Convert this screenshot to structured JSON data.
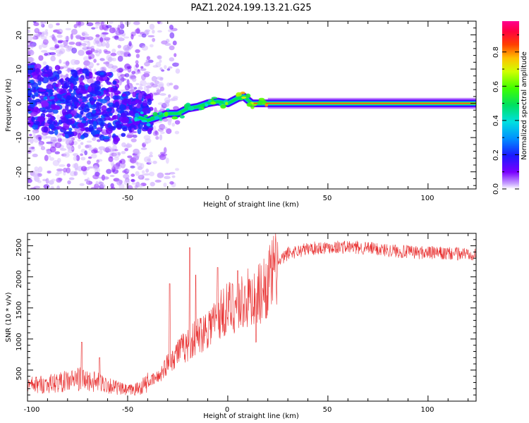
{
  "title": "PAZ1.2024.199.13.21.G25",
  "colors": {
    "snr_line": "#e83030",
    "background": "#ffffff",
    "axis": "#000000"
  },
  "chart_data": [
    {
      "type": "heatmap",
      "xlabel": "Height of straight line (km)",
      "ylabel": "Frequency (Hz)",
      "xlim": [
        -100,
        124
      ],
      "ylim": [
        -25,
        24
      ],
      "xticks": [
        "-100",
        "-50",
        "0",
        "50",
        "100"
      ],
      "yticks": [
        "-20",
        "-10",
        "0",
        "10",
        "20"
      ],
      "colorbar": {
        "label": "Normalized spectral amplitude",
        "range": [
          0,
          0.98
        ],
        "ticks": [
          "0.0",
          "0.2",
          "0.4",
          "0.6",
          "0.8"
        ],
        "colormap": "rainbow (violet -> blue -> cyan -> green -> yellow -> red -> magenta)"
      },
      "ridge": [
        {
          "x": -98,
          "f": 3,
          "a": 0.22
        },
        {
          "x": -90,
          "f": 2.5,
          "a": 0.3
        },
        {
          "x": -85,
          "f": 1,
          "a": 0.25
        },
        {
          "x": -78,
          "f": 0,
          "a": 0.25
        },
        {
          "x": -72,
          "f": -2.5,
          "a": 0.32
        },
        {
          "x": -66,
          "f": -1.5,
          "a": 0.25
        },
        {
          "x": -60,
          "f": -3,
          "a": 0.3
        },
        {
          "x": -55,
          "f": -6,
          "a": 0.22
        },
        {
          "x": -50,
          "f": -8,
          "a": 0.2
        },
        {
          "x": -45,
          "f": -4,
          "a": 0.45
        },
        {
          "x": -40,
          "f": -5,
          "a": 0.6
        },
        {
          "x": -35,
          "f": -4,
          "a": 0.55
        },
        {
          "x": -30,
          "f": -3,
          "a": 0.62
        },
        {
          "x": -25,
          "f": -3,
          "a": 0.65
        },
        {
          "x": -20,
          "f": -1.5,
          "a": 0.6
        },
        {
          "x": -15,
          "f": -1,
          "a": 0.62
        },
        {
          "x": -10,
          "f": 0,
          "a": 0.62
        },
        {
          "x": -5,
          "f": 0.5,
          "a": 0.65
        },
        {
          "x": 0,
          "f": 0,
          "a": 0.7
        },
        {
          "x": 5,
          "f": 1.5,
          "a": 0.75
        },
        {
          "x": 8,
          "f": 2,
          "a": 0.8
        },
        {
          "x": 12,
          "f": 0,
          "a": 0.75
        },
        {
          "x": 18,
          "f": 0,
          "a": 0.85
        },
        {
          "x": 30,
          "f": 0,
          "a": 0.88
        },
        {
          "x": 60,
          "f": 0,
          "a": 0.9
        },
        {
          "x": 100,
          "f": 0,
          "a": 0.9
        },
        {
          "x": 124,
          "f": 0,
          "a": 0.9
        }
      ],
      "speckle_region": {
        "x": [
          -100,
          -25
        ],
        "f": [
          -25,
          24
        ]
      }
    },
    {
      "type": "line",
      "xlabel": "Height of straight line (km)",
      "ylabel": "SNR (10 * v/v)",
      "xlim": [
        -100,
        124
      ],
      "ylim": [
        0,
        2700
      ],
      "xticks": [
        "-100",
        "-50",
        "0",
        "50",
        "100"
      ],
      "yticks": [
        "500",
        "1000",
        "1500",
        "2000",
        "2500"
      ],
      "series": [
        {
          "trend": [
            {
              "x": -100,
              "y": 250
            },
            {
              "x": -90,
              "y": 280
            },
            {
              "x": -80,
              "y": 320
            },
            {
              "x": -75,
              "y": 360
            },
            {
              "x": -70,
              "y": 330
            },
            {
              "x": -65,
              "y": 300
            },
            {
              "x": -60,
              "y": 270
            },
            {
              "x": -55,
              "y": 210
            },
            {
              "x": -50,
              "y": 170
            },
            {
              "x": -45,
              "y": 200
            },
            {
              "x": -40,
              "y": 300
            },
            {
              "x": -35,
              "y": 380
            },
            {
              "x": -30,
              "y": 600
            },
            {
              "x": -25,
              "y": 800
            },
            {
              "x": -20,
              "y": 900
            },
            {
              "x": -15,
              "y": 1050
            },
            {
              "x": -10,
              "y": 1200
            },
            {
              "x": -5,
              "y": 1350
            },
            {
              "x": 0,
              "y": 1500
            },
            {
              "x": 5,
              "y": 1550
            },
            {
              "x": 10,
              "y": 1650
            },
            {
              "x": 15,
              "y": 1700
            },
            {
              "x": 20,
              "y": 1900
            },
            {
              "x": 25,
              "y": 2200
            },
            {
              "x": 30,
              "y": 2380
            },
            {
              "x": 40,
              "y": 2450
            },
            {
              "x": 50,
              "y": 2480
            },
            {
              "x": 60,
              "y": 2480
            },
            {
              "x": 70,
              "y": 2460
            },
            {
              "x": 80,
              "y": 2430
            },
            {
              "x": 90,
              "y": 2400
            },
            {
              "x": 100,
              "y": 2390
            },
            {
              "x": 110,
              "y": 2370
            },
            {
              "x": 124,
              "y": 2380
            }
          ],
          "spikes": [
            {
              "x": -73,
              "y": 950
            },
            {
              "x": -64,
              "y": 700
            },
            {
              "x": -29,
              "y": 1890
            },
            {
              "x": -19,
              "y": 2470
            },
            {
              "x": -16,
              "y": 2030
            },
            {
              "x": -5,
              "y": 2150
            },
            {
              "x": 5,
              "y": 2100
            },
            {
              "x": 14,
              "y": 950
            }
          ]
        }
      ]
    }
  ]
}
